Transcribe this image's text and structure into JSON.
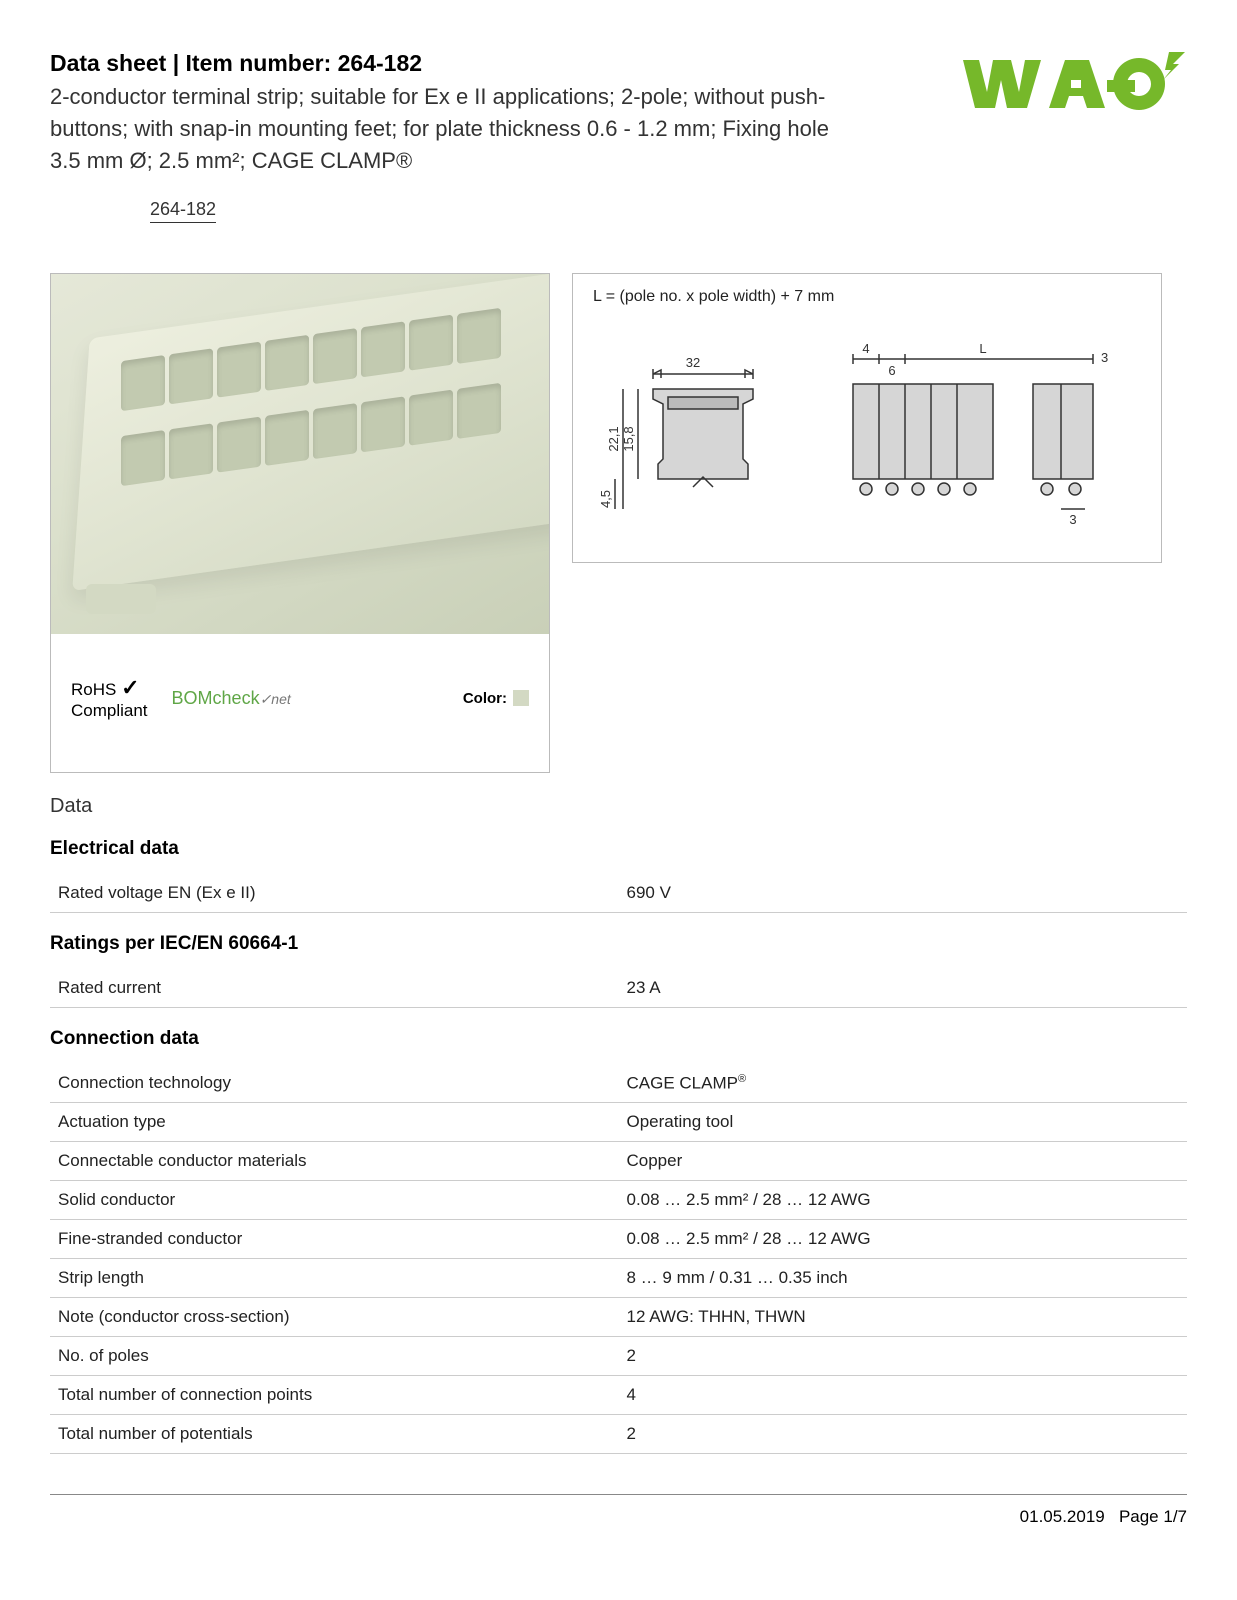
{
  "header": {
    "title": "Data sheet  |  Item number: 264-182",
    "description": "2-conductor terminal strip; suitable for Ex e II applications; 2-pole; without push-buttons; with snap-in mounting feet; for plate thickness 0.6 - 1.2 mm; Fixing hole 3.5 mm Ø; 2.5 mm²; CAGE CLAMP®",
    "item_code": "264-182"
  },
  "logo": {
    "text": "WAGO",
    "color": "#76b82a"
  },
  "left_panel": {
    "rohs_line1": "RoHS",
    "rohs_check": "✓",
    "rohs_line2": "Compliant",
    "bomcheck_main": "BOMcheck",
    "bomcheck_suffix": "✓net",
    "color_label": "Color:",
    "product_color": "#d3d9c3"
  },
  "right_panel": {
    "formula": "L = (pole no. x pole width) + 7 mm",
    "dimensions": {
      "width_top": "32",
      "height_outer": "22,1",
      "height_inner": "15,8",
      "base_gap": "4,5",
      "side_margin_left": "4",
      "pole_width": "6",
      "length_label": "L",
      "side_margin_right": "3",
      "bottom_pin": "3"
    }
  },
  "sections": {
    "main_heading": "Data",
    "electrical": {
      "title": "Electrical data",
      "rows": [
        {
          "label": "Rated voltage EN (Ex e II)",
          "value": "690 V"
        }
      ]
    },
    "ratings": {
      "title": "Ratings per IEC/EN 60664-1",
      "rows": [
        {
          "label": "Rated current",
          "value": "23 A"
        }
      ]
    },
    "connection": {
      "title": "Connection data",
      "rows": [
        {
          "label": "Connection technology",
          "value": "CAGE CLAMP",
          "sup": "®"
        },
        {
          "label": "Actuation type",
          "value": "Operating tool"
        },
        {
          "label": "Connectable conductor materials",
          "value": "Copper"
        },
        {
          "label": "Solid conductor",
          "value": "0.08 … 2.5 mm² / 28 … 12 AWG"
        },
        {
          "label": "Fine-stranded conductor",
          "value": "0.08 … 2.5 mm² / 28 … 12 AWG"
        },
        {
          "label": "Strip length",
          "value": "8 … 9 mm / 0.31 … 0.35 inch"
        },
        {
          "label": "Note (conductor cross-section)",
          "value": "12 AWG: THHN, THWN"
        },
        {
          "label": "No. of poles",
          "value": "2"
        },
        {
          "label": "Total number of connection points",
          "value": "4"
        },
        {
          "label": "Total number of potentials",
          "value": "2"
        }
      ]
    }
  },
  "footer": {
    "date": "01.05.2019",
    "page": "Page 1/7"
  },
  "colors": {
    "text": "#000000",
    "border": "#cccccc",
    "footer_border": "#888888",
    "diagram_fill": "#d6d6d6",
    "diagram_stroke": "#333333"
  }
}
